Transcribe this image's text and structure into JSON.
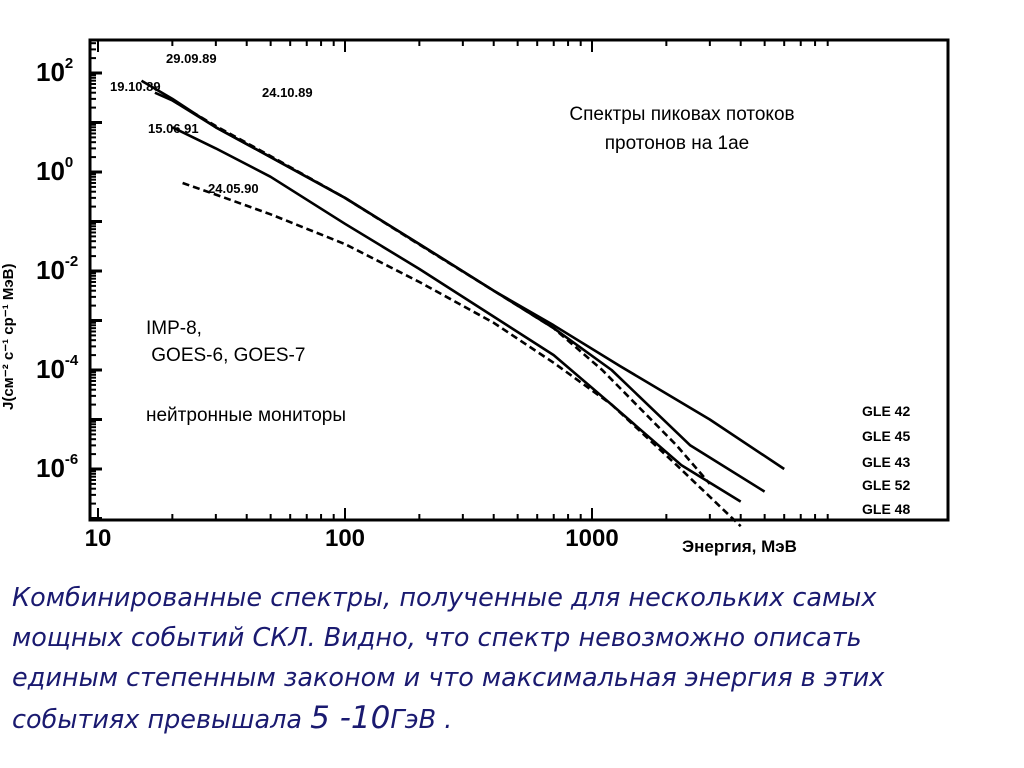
{
  "chart_data": {
    "type": "line",
    "xscale": "log",
    "yscale": "log",
    "xlim": [
      10,
      10000
    ],
    "ylim": [
      1e-07,
      1000
    ],
    "x_ticks": [
      {
        "value": 10,
        "label": "10"
      },
      {
        "value": 100,
        "label": "100"
      },
      {
        "value": 1000,
        "label": "1000"
      }
    ],
    "y_ticks": [
      {
        "value": 100,
        "base": "10",
        "exp": "2"
      },
      {
        "value": 1,
        "base": "10",
        "exp": "0"
      },
      {
        "value": 0.01,
        "base": "10",
        "exp": "-2"
      },
      {
        "value": 0.0001,
        "base": "10",
        "exp": "-4"
      },
      {
        "value": 1e-06,
        "base": "10",
        "exp": "-6"
      }
    ],
    "xlabel": "Энергия, МэВ",
    "ylabel": "J(см⁻² с⁻¹ ср⁻¹ МэВ)",
    "title": "Спектры пиковах потоков\nпротонов на 1ае",
    "annotations": [
      {
        "text": "IMP-8,\n GOES-6, GOES-7"
      },
      {
        "text": "нейтронные мониторы"
      }
    ],
    "series": [
      {
        "name": "29.09.89",
        "label": "GLE 42",
        "dashed": false,
        "points": [
          [
            15,
            70
          ],
          [
            20,
            30
          ],
          [
            30,
            8
          ],
          [
            50,
            2
          ],
          [
            100,
            0.3
          ],
          [
            200,
            0.035
          ],
          [
            400,
            0.004
          ],
          [
            700,
            0.0008
          ],
          [
            1300,
            0.00012
          ],
          [
            3000,
            1e-05
          ],
          [
            6000,
            1e-06
          ]
        ]
      },
      {
        "name": "19.10.89",
        "label": "GLE 45",
        "dashed": false,
        "points": [
          [
            17,
            40
          ],
          [
            20,
            28
          ],
          [
            30,
            8
          ],
          [
            50,
            2
          ],
          [
            100,
            0.3
          ],
          [
            200,
            0.035
          ],
          [
            400,
            0.004
          ],
          [
            700,
            0.0007
          ],
          [
            1200,
            0.0001
          ],
          [
            2500,
            3e-06
          ],
          [
            5000,
            3.5e-07
          ]
        ]
      },
      {
        "name": "24.10.89",
        "label": "GLE 43",
        "dashed": true,
        "points": [
          [
            20,
            28
          ],
          [
            30,
            8.5
          ],
          [
            50,
            2.1
          ],
          [
            100,
            0.3
          ],
          [
            200,
            0.034
          ],
          [
            400,
            0.004
          ],
          [
            700,
            0.0007
          ],
          [
            1100,
            0.0001
          ],
          [
            2200,
            3e-06
          ],
          [
            3000,
            5e-07
          ]
        ]
      },
      {
        "name": "15.06.91",
        "label": "GLE 52",
        "dashed": false,
        "points": [
          [
            20,
            8
          ],
          [
            30,
            3
          ],
          [
            50,
            0.8
          ],
          [
            100,
            0.09
          ],
          [
            200,
            0.011
          ],
          [
            400,
            0.0012
          ],
          [
            700,
            0.0002
          ],
          [
            1200,
            2e-05
          ],
          [
            2300,
            1.2e-06
          ],
          [
            4000,
            2.2e-07
          ]
        ]
      },
      {
        "name": "24.05.90",
        "label": "GLE 48",
        "dashed": true,
        "points": [
          [
            22,
            0.6
          ],
          [
            30,
            0.35
          ],
          [
            50,
            0.14
          ],
          [
            100,
            0.035
          ],
          [
            200,
            0.006
          ],
          [
            400,
            0.0009
          ],
          [
            700,
            0.00014
          ],
          [
            1200,
            2e-05
          ],
          [
            2200,
            1.2e-06
          ],
          [
            4000,
            7e-08
          ]
        ]
      }
    ]
  },
  "caption": {
    "text": "Комбинированные спектры, полученные для нескольких самых\nмощных событий СКЛ. Видно, что спектр невозможно описать\nединым степенным законом и что максимальная энергия в этих\nсобытиях превышала ",
    "energy": "5 -10",
    "unit": "ГэВ ."
  }
}
